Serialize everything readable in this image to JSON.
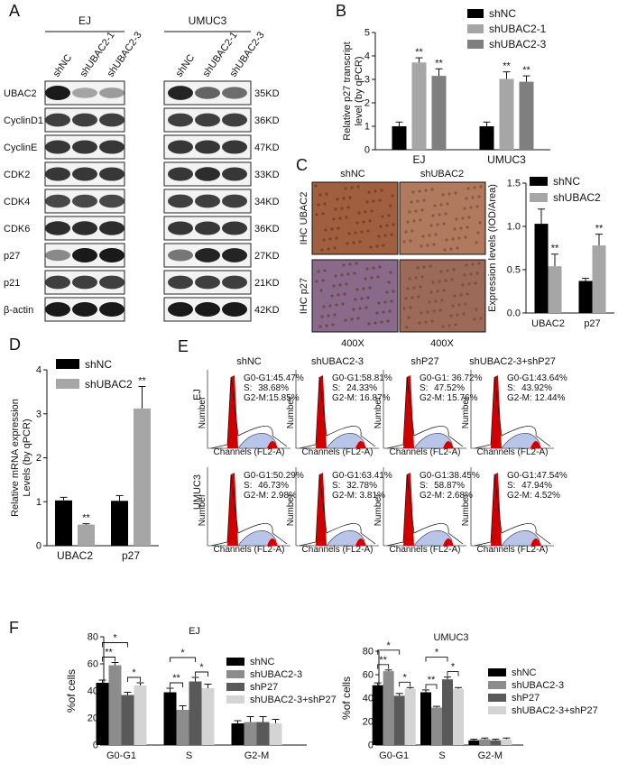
{
  "panel_labels": [
    "A",
    "B",
    "C",
    "D",
    "E",
    "F"
  ],
  "panelA": {
    "groups": [
      "EJ",
      "UMUC3"
    ],
    "lanes": [
      "shNC",
      "shUBAC2-1",
      "shUBAC2-3"
    ],
    "proteins": [
      {
        "name": "UBAC2",
        "kd": "35KD",
        "ej": [
          1.0,
          0.25,
          0.3
        ],
        "um": [
          0.95,
          0.6,
          0.55
        ]
      },
      {
        "name": "CyclinD1",
        "kd": "36KD",
        "ej": [
          0.8,
          0.8,
          0.8
        ],
        "um": [
          0.8,
          0.8,
          0.8
        ]
      },
      {
        "name": "CyclinE",
        "kd": "47KD",
        "ej": [
          0.85,
          0.85,
          0.85
        ],
        "um": [
          0.85,
          0.85,
          0.85
        ]
      },
      {
        "name": "CDK2",
        "kd": "33KD",
        "ej": [
          0.85,
          0.85,
          0.85
        ],
        "um": [
          0.85,
          0.9,
          0.85
        ]
      },
      {
        "name": "CDK4",
        "kd": "34KD",
        "ej": [
          0.75,
          0.75,
          0.75
        ],
        "um": [
          0.8,
          0.8,
          0.8
        ]
      },
      {
        "name": "CDK6",
        "kd": "36KD",
        "ej": [
          0.9,
          0.9,
          0.9
        ],
        "um": [
          0.85,
          0.85,
          0.85
        ]
      },
      {
        "name": "p27",
        "kd": "27KD",
        "ej": [
          0.4,
          1.0,
          1.0
        ],
        "um": [
          0.5,
          0.95,
          0.95
        ]
      },
      {
        "name": "p21",
        "kd": "21KD",
        "ej": [
          0.8,
          0.8,
          0.8
        ],
        "um": [
          0.8,
          0.8,
          0.8
        ]
      },
      {
        "name": "β-actin",
        "kd": "42KD",
        "ej": [
          1.0,
          1.0,
          1.0
        ],
        "um": [
          1.0,
          1.0,
          1.0
        ]
      }
    ]
  },
  "panelB": {
    "chart_data": {
      "type": "bar",
      "categories": [
        "EJ",
        "UMUC3"
      ],
      "series": [
        {
          "name": "shNC",
          "values": [
            1.0,
            1.0
          ],
          "errors": [
            0.18,
            0.18
          ],
          "color": "#000000"
        },
        {
          "name": "shUBAC2-1",
          "values": [
            3.72,
            3.02
          ],
          "errors": [
            0.2,
            0.3
          ],
          "color": "#a6a6a6"
        },
        {
          "name": "shUBAC2-3",
          "values": [
            3.15,
            2.9
          ],
          "errors": [
            0.3,
            0.25
          ],
          "color": "#7f7f7f"
        }
      ],
      "sig": [
        "",
        "**",
        "**"
      ],
      "ylabel": "Relative p27 transcript level (by qPCR)",
      "ylim": [
        0,
        5
      ],
      "yticks": [
        "0",
        "1",
        "2",
        "3",
        "4",
        "5"
      ],
      "legend": "top-right"
    }
  },
  "panelC": {
    "cols": [
      "shNC",
      "shUBAC2"
    ],
    "rows": [
      "IHC UBAC2",
      "IHC p27"
    ],
    "mag": [
      "400X",
      "400X"
    ],
    "chart_data": {
      "type": "bar",
      "categories": [
        "UBAC2",
        "p27"
      ],
      "series": [
        {
          "name": "shNC",
          "values": [
            1.03,
            0.37
          ],
          "errors": [
            0.17,
            0.03
          ],
          "color": "#000000"
        },
        {
          "name": "shUBAC2",
          "values": [
            0.54,
            0.78
          ],
          "errors": [
            0.14,
            0.13
          ],
          "color": "#a6a6a6"
        }
      ],
      "sig": [
        "",
        "**"
      ],
      "ylabel": "Expression levels (IOD/Area)",
      "ylim": [
        0,
        1.5
      ],
      "yticks": [
        "0.0",
        "0.5",
        "1.0",
        "1.5"
      ]
    }
  },
  "panelD": {
    "chart_data": {
      "type": "bar",
      "categories": [
        "UBAC2",
        "p27"
      ],
      "series": [
        {
          "name": "shNC",
          "values": [
            1.03,
            1.02
          ],
          "errors": [
            0.07,
            0.12
          ],
          "color": "#000000"
        },
        {
          "name": "shUBAC2",
          "values": [
            0.48,
            3.12
          ],
          "errors": [
            0.02,
            0.5
          ],
          "color": "#a6a6a6"
        }
      ],
      "sig": [
        "",
        "**"
      ],
      "ylabel": "Relative mRNA expression Levels (by qPCR)",
      "ylim": [
        0,
        4
      ],
      "yticks": [
        "0",
        "1",
        "2",
        "3",
        "4"
      ]
    }
  },
  "panelE": {
    "cols": [
      "shNC",
      "shUBAC2-3",
      "shP27",
      "shUBAC2-3+shP27"
    ],
    "rows": [
      "EJ",
      "UMUC3"
    ],
    "stats": [
      [
        {
          "g": "G0-G1:45.47%",
          "s": "38.68%",
          "m": "G2-M:15.85%"
        },
        {
          "g": "G0-G1:58.81%",
          "s": "24.33%",
          "m": "G2-M: 16.87%"
        },
        {
          "g": "G0-G1: 36.72%",
          "s": "47.52%",
          "m": "G2-M: 15.76%"
        },
        {
          "g": "G0-G1:43.64%",
          "s": "43.92%",
          "m": "G2-M: 12.44%"
        }
      ],
      [
        {
          "g": "G0-G1:50.29%",
          "s": "46.73%",
          "m": "G2-M: 2.98%"
        },
        {
          "g": "G0-G1:63.41%",
          "s": "32.78%",
          "m": "G2-M: 3.81%"
        },
        {
          "g": "G0-G1:38.45%",
          "s": "58.87%",
          "m": "G2-M: 2.68%"
        },
        {
          "g": "G0-G1:47.54%",
          "s": "47.94%",
          "m": "G2-M: 4.52%"
        }
      ]
    ],
    "s_prefix": "S:",
    "ylab": "Number",
    "xlab": "Channels (FL2-A)"
  },
  "panelF": {
    "chart_data": [
      {
        "type": "bar",
        "title": "EJ",
        "categories": [
          "G0-G1",
          "S",
          "G2-M"
        ],
        "series": [
          {
            "name": "shNC",
            "values": [
              46,
              39,
              16
            ],
            "errors": [
              2,
              3,
              2
            ],
            "color": "#000000"
          },
          {
            "name": "shUBAC2-3",
            "values": [
              59,
              26,
              17
            ],
            "errors": [
              2,
              3,
              4
            ],
            "color": "#8c8c8c"
          },
          {
            "name": "shP27",
            "values": [
              37,
              47,
              17
            ],
            "errors": [
              2,
              3,
              4
            ],
            "color": "#595959"
          },
          {
            "name": "shUBAC2-3+shP27",
            "values": [
              44,
              42,
              16
            ],
            "errors": [
              2,
              3,
              3
            ],
            "color": "#d4d4d4"
          }
        ],
        "ylabel": "%of cells",
        "ylim": [
          0,
          80
        ],
        "yticks": [
          "0",
          "20",
          "40",
          "60",
          "80"
        ],
        "sig": {
          "near": [
            "**",
            "*",
            "**",
            "*"
          ],
          "far": [
            "*",
            "*"
          ]
        }
      },
      {
        "type": "bar",
        "title": "UMUC3",
        "categories": [
          "G0-G1",
          "S",
          "G2-M"
        ],
        "series": [
          {
            "name": "shNC",
            "values": [
              51,
              45,
              4
            ],
            "errors": [
              2,
              2,
              1
            ],
            "color": "#000000"
          },
          {
            "name": "shUBAC2-3",
            "values": [
              63,
              32,
              5
            ],
            "errors": [
              1,
              1,
              1
            ],
            "color": "#8c8c8c"
          },
          {
            "name": "shP27",
            "values": [
              42,
              56,
              4
            ],
            "errors": [
              2,
              2,
              1
            ],
            "color": "#595959"
          },
          {
            "name": "shUBAC2-3+shP27",
            "values": [
              48,
              48,
              5
            ],
            "errors": [
              1,
              1,
              1
            ],
            "color": "#d4d4d4"
          }
        ],
        "ylabel": "%of cells",
        "ylim": [
          0,
          80
        ],
        "yticks": [
          "0",
          "20",
          "40",
          "60",
          "80"
        ],
        "sig": {
          "near": [
            "**",
            "*",
            "**",
            "*"
          ],
          "far": [
            "*",
            "*"
          ]
        }
      }
    ]
  }
}
